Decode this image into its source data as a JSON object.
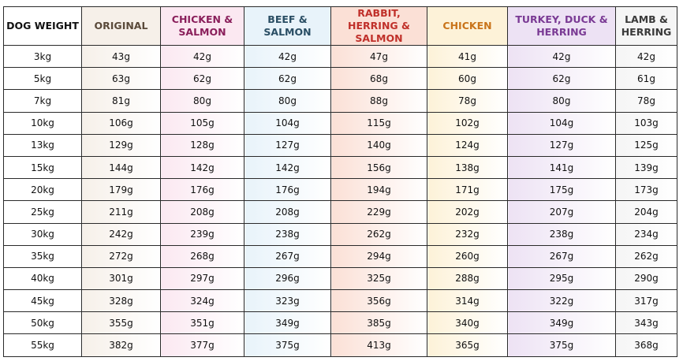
{
  "columns": [
    {
      "label": "DOG WEIGHT",
      "color": "#111111",
      "bg": "#ffffff"
    },
    {
      "label": "ORIGINAL",
      "color": "#5a4a3a",
      "bg": "#f6f0e9"
    },
    {
      "label": "CHICKEN & SALMON",
      "color": "#8a1f5b",
      "bg": "#fbe8f1"
    },
    {
      "label": "BEEF & SALMON",
      "color": "#2a4e64",
      "bg": "#e8f3fa"
    },
    {
      "label": "RABBIT, HERRING & SALMON",
      "color": "#c0302a",
      "bg": "#fbe0d6"
    },
    {
      "label": "CHICKEN",
      "color": "#c9741a",
      "bg": "#fdf2d8"
    },
    {
      "label": "TURKEY, DUCK & HERRING",
      "color": "#7a3a94",
      "bg": "#ede2f4"
    },
    {
      "label": "LAMB & HERRING",
      "color": "#3a3a3a",
      "bg": "#f5f5f5"
    }
  ],
  "rows": [
    [
      "3kg",
      "43g",
      "42g",
      "42g",
      "47g",
      "41g",
      "42g",
      "42g"
    ],
    [
      "5kg",
      "63g",
      "62g",
      "62g",
      "68g",
      "60g",
      "62g",
      "61g"
    ],
    [
      "7kg",
      "81g",
      "80g",
      "80g",
      "88g",
      "78g",
      "80g",
      "78g"
    ],
    [
      "10kg",
      "106g",
      "105g",
      "104g",
      "115g",
      "102g",
      "104g",
      "103g"
    ],
    [
      "13kg",
      "129g",
      "128g",
      "127g",
      "140g",
      "124g",
      "127g",
      "125g"
    ],
    [
      "15kg",
      "144g",
      "142g",
      "142g",
      "156g",
      "138g",
      "141g",
      "139g"
    ],
    [
      "20kg",
      "179g",
      "176g",
      "176g",
      "194g",
      "171g",
      "175g",
      "173g"
    ],
    [
      "25kg",
      "211g",
      "208g",
      "208g",
      "229g",
      "202g",
      "207g",
      "204g"
    ],
    [
      "30kg",
      "242g",
      "239g",
      "238g",
      "262g",
      "232g",
      "238g",
      "234g"
    ],
    [
      "35kg",
      "272g",
      "268g",
      "267g",
      "294g",
      "260g",
      "267g",
      "262g"
    ],
    [
      "40kg",
      "301g",
      "297g",
      "296g",
      "325g",
      "288g",
      "295g",
      "290g"
    ],
    [
      "45kg",
      "328g",
      "324g",
      "323g",
      "356g",
      "314g",
      "322g",
      "317g"
    ],
    [
      "50kg",
      "355g",
      "351g",
      "349g",
      "385g",
      "340g",
      "349g",
      "343g"
    ],
    [
      "55kg",
      "382g",
      "377g",
      "375g",
      "413g",
      "365g",
      "375g",
      "368g"
    ]
  ]
}
